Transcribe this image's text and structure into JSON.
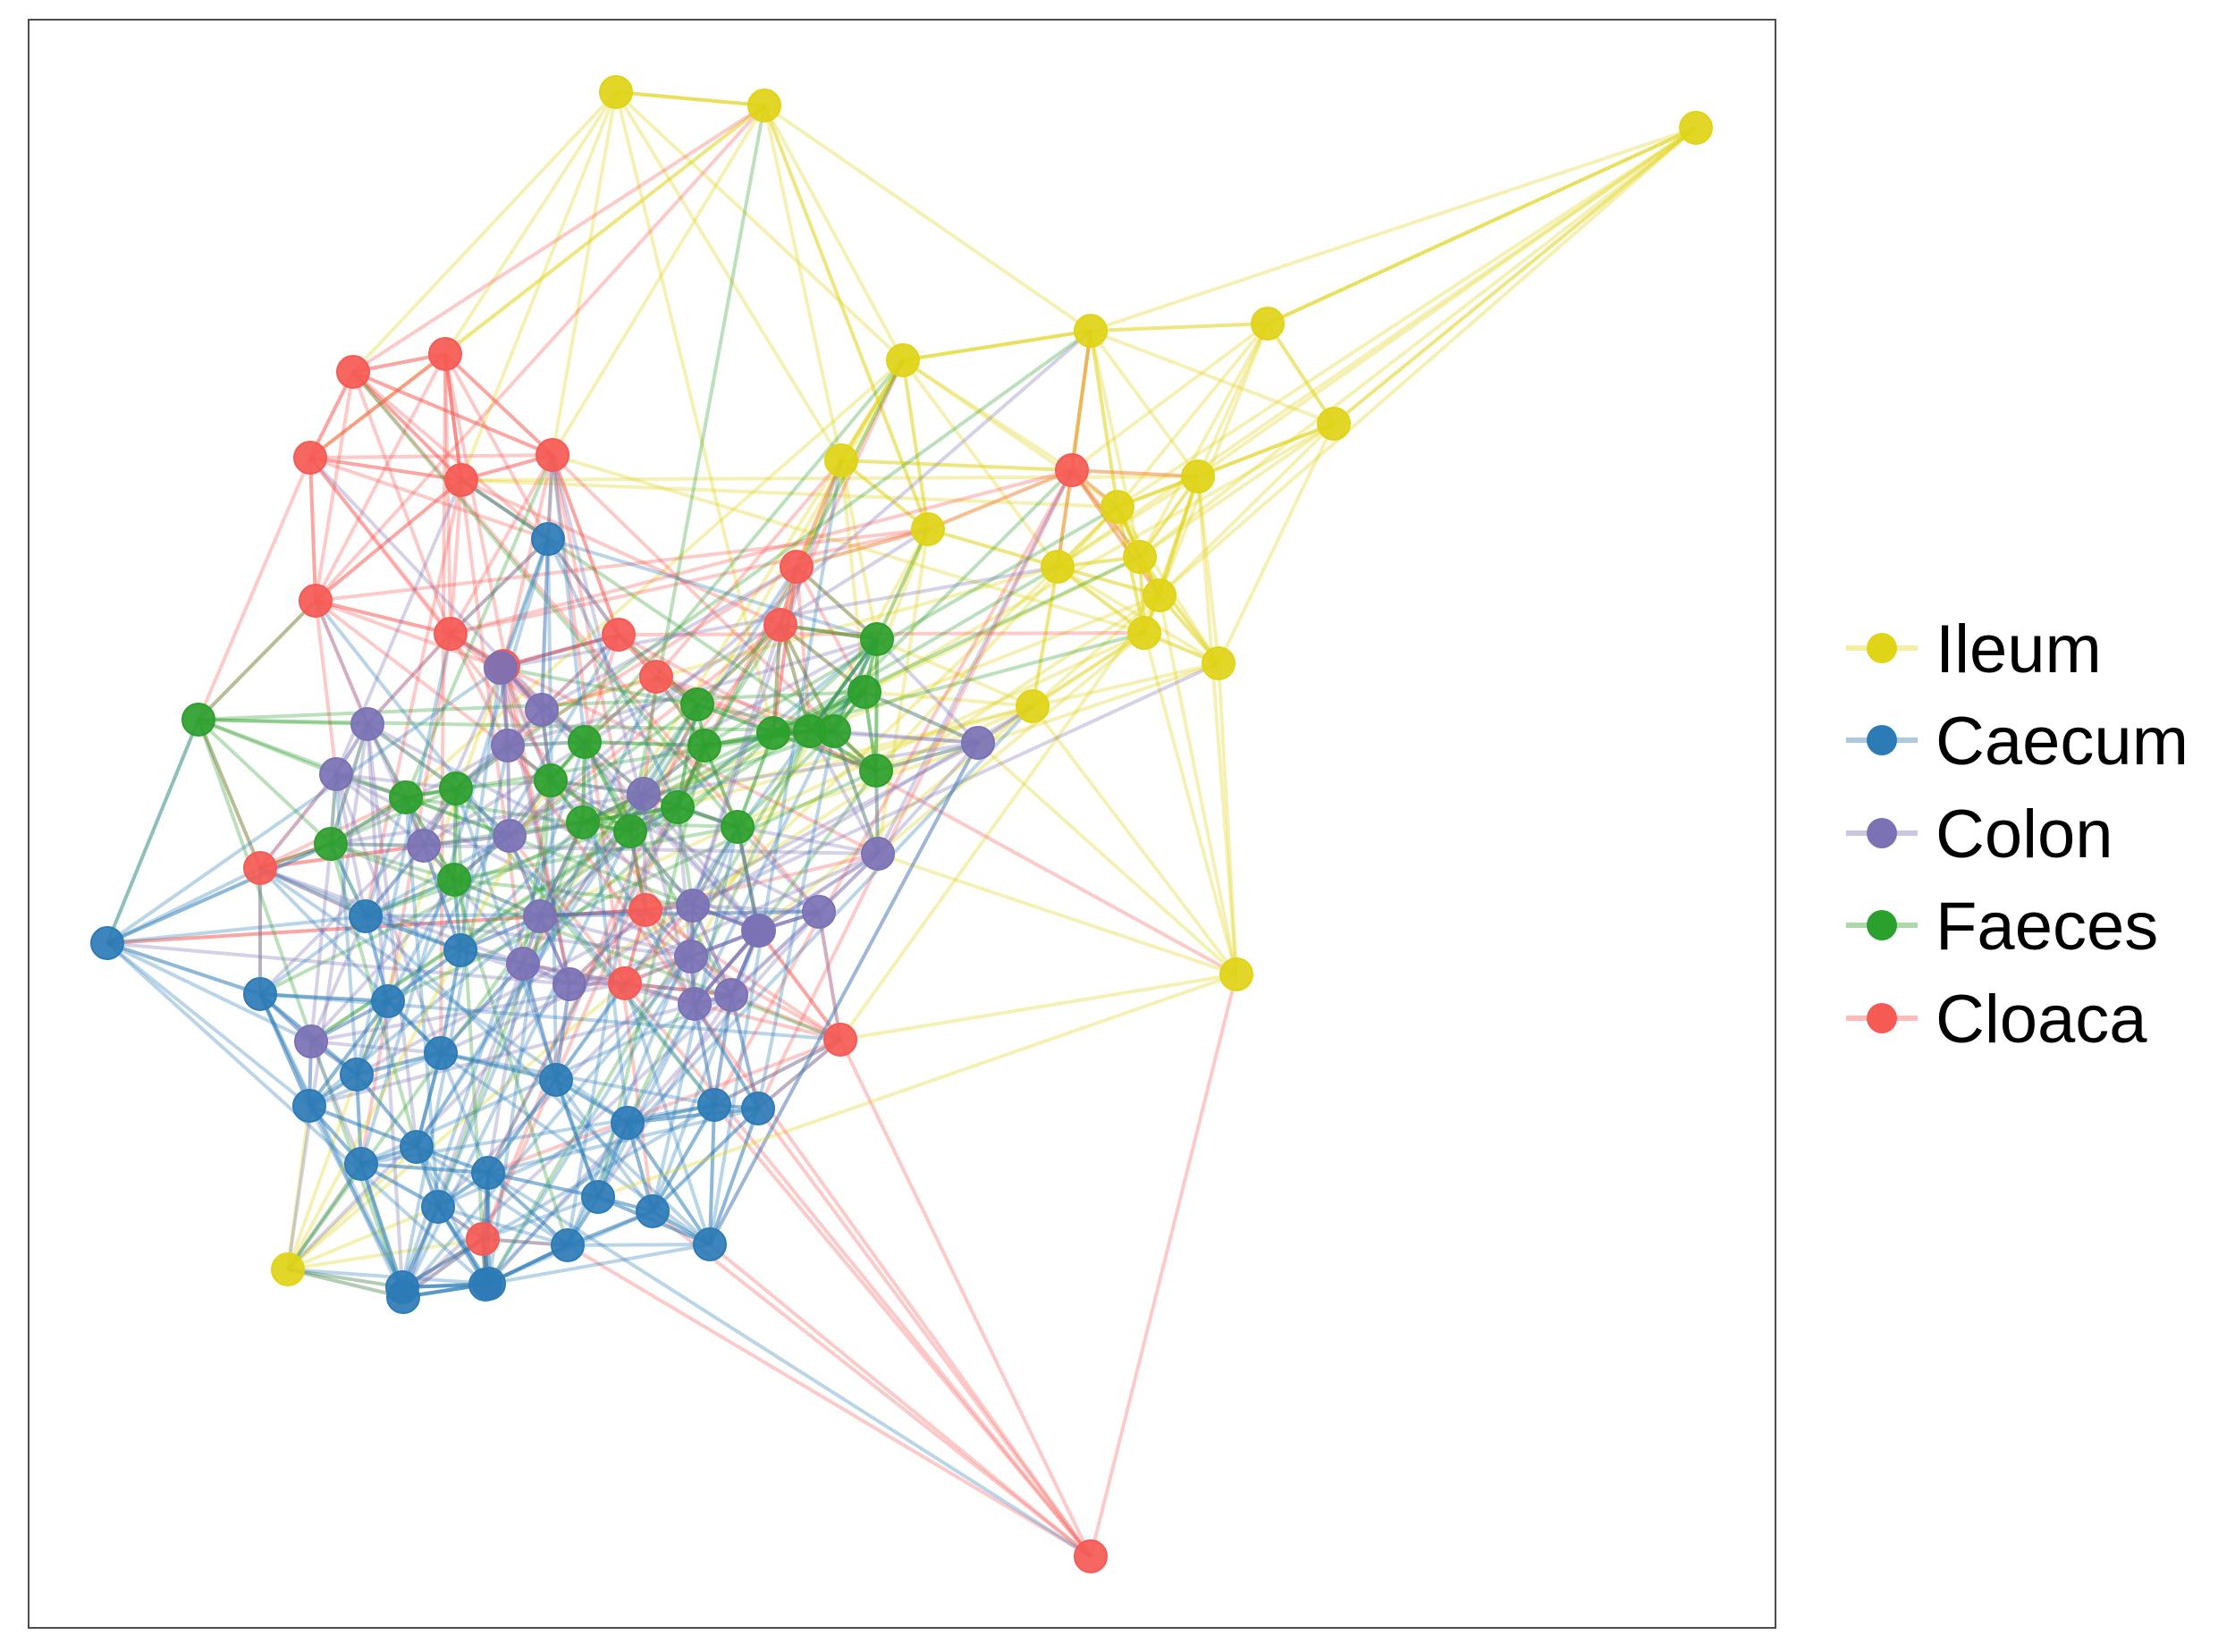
{
  "legend": {
    "items": [
      {
        "key": "ileum",
        "label": "Ileum",
        "color": "#E0D417"
      },
      {
        "key": "caecum",
        "label": "Caecum",
        "color": "#2C7BB6"
      },
      {
        "key": "colon",
        "label": "Colon",
        "color": "#7B72B5"
      },
      {
        "key": "faeces",
        "label": "Faeces",
        "color": "#2CA02C"
      },
      {
        "key": "cloaca",
        "label": "Cloaca",
        "color": "#F65A55"
      }
    ]
  }
}
